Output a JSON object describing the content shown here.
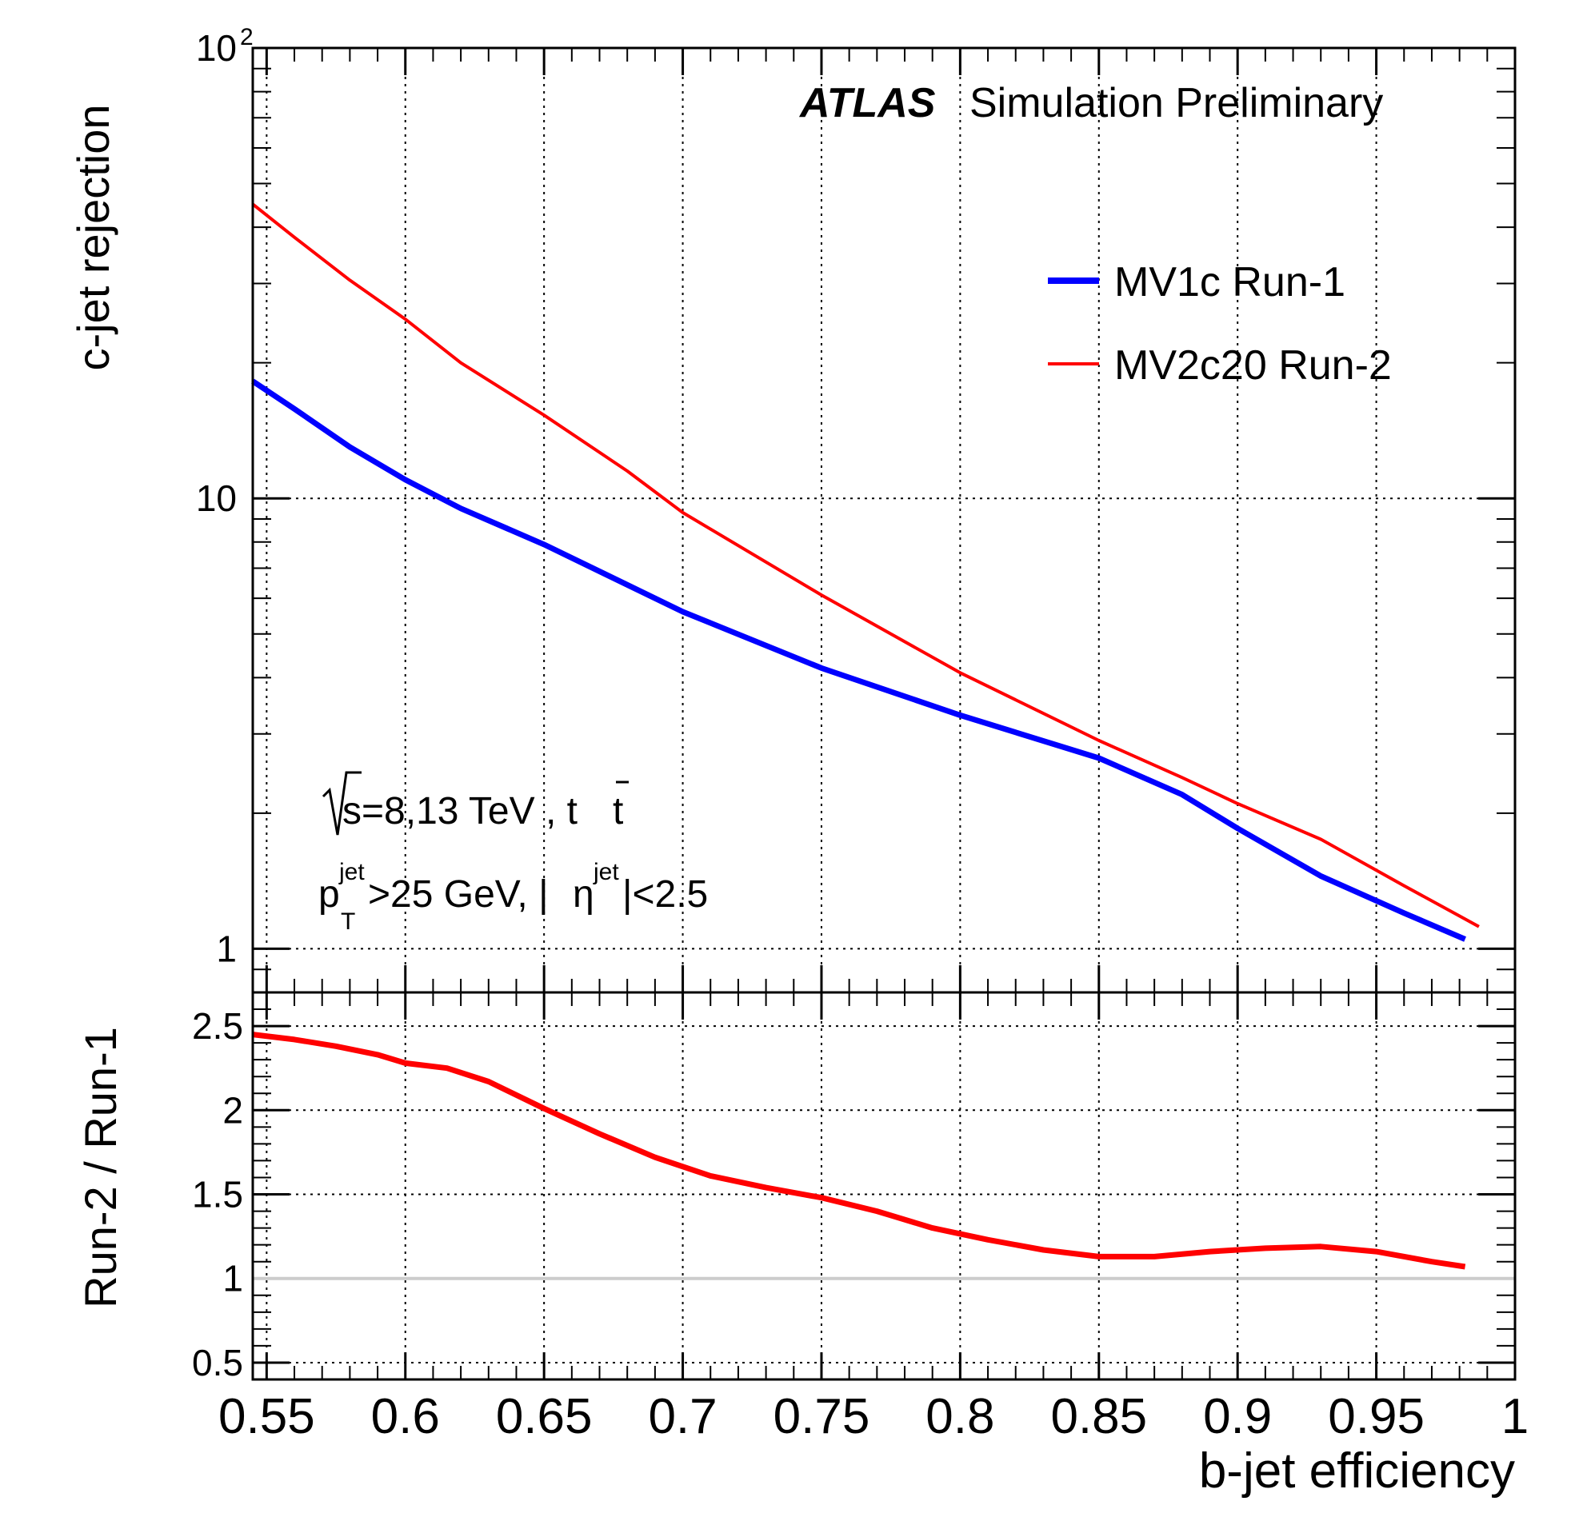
{
  "chart_data": [
    {
      "type": "line",
      "panel": "main",
      "label_atlas": "ATLAS",
      "label_status": "Simulation Preliminary",
      "annotation_sqrt": "s=8,13 TeV , t",
      "annotation_tbar": "t",
      "annotation_pt_p": "p",
      "annotation_pt_sup": "jet",
      "annotation_pt_sub": "T",
      "annotation_pt_rest": ">25 GeV, |",
      "annotation_eta": "η",
      "annotation_eta_sup": "jet",
      "annotation_eta_rest": "|<2.5",
      "xlabel": "",
      "ylabel": "c-jet rejection",
      "xlim": [
        0.545,
        1.0
      ],
      "ylim": [
        0.8,
        100
      ],
      "yscale": "log",
      "yticks": [
        {
          "value": 1,
          "label": "1"
        },
        {
          "value": 10,
          "label": "10"
        },
        {
          "value": 100,
          "label": "10",
          "sup": "2"
        }
      ],
      "grid": true,
      "legend_position": "top-right",
      "series": [
        {
          "name": "MV1c Run-1",
          "color": "#0000ff",
          "width": "thick",
          "x": [
            0.545,
            0.56,
            0.58,
            0.6,
            0.62,
            0.65,
            0.7,
            0.75,
            0.8,
            0.85,
            0.88,
            0.9,
            0.93,
            0.96,
            0.982
          ],
          "y": [
            18.2,
            15.8,
            13.0,
            11.0,
            9.5,
            7.9,
            5.6,
            4.2,
            3.3,
            2.65,
            2.2,
            1.85,
            1.45,
            1.2,
            1.05
          ]
        },
        {
          "name": "MV2c20 Run-2",
          "color": "#ff0000",
          "width": "thin",
          "x": [
            0.545,
            0.56,
            0.58,
            0.6,
            0.62,
            0.65,
            0.68,
            0.7,
            0.75,
            0.8,
            0.85,
            0.88,
            0.9,
            0.93,
            0.96,
            0.987
          ],
          "y": [
            45,
            38,
            30.5,
            25,
            20,
            15.3,
            11.5,
            9.3,
            6.1,
            4.1,
            2.9,
            2.4,
            2.1,
            1.75,
            1.38,
            1.12
          ]
        }
      ]
    },
    {
      "type": "line",
      "panel": "ratio",
      "xlabel": "b-jet efficiency",
      "ylabel": "Run-2 / Run-1",
      "xlim": [
        0.545,
        1.0
      ],
      "ylim": [
        0.4,
        2.7
      ],
      "xticks": [
        "0.55",
        "0.6",
        "0.65",
        "0.7",
        "0.75",
        "0.8",
        "0.85",
        "0.9",
        "0.95",
        "1"
      ],
      "yticks": [
        "0.5",
        "1",
        "1.5",
        "2",
        "2.5"
      ],
      "grid": true,
      "reference_line": {
        "y": 1.0,
        "color": "#cccccc"
      },
      "series": [
        {
          "color": "#ff0000",
          "x": [
            0.545,
            0.56,
            0.575,
            0.59,
            0.6,
            0.615,
            0.63,
            0.65,
            0.67,
            0.69,
            0.71,
            0.73,
            0.75,
            0.77,
            0.79,
            0.81,
            0.83,
            0.85,
            0.87,
            0.89,
            0.91,
            0.93,
            0.95,
            0.97,
            0.982
          ],
          "y": [
            2.45,
            2.42,
            2.38,
            2.33,
            2.28,
            2.25,
            2.17,
            2.01,
            1.86,
            1.72,
            1.61,
            1.54,
            1.48,
            1.4,
            1.3,
            1.23,
            1.17,
            1.13,
            1.13,
            1.16,
            1.18,
            1.19,
            1.16,
            1.1,
            1.07
          ]
        }
      ]
    }
  ]
}
